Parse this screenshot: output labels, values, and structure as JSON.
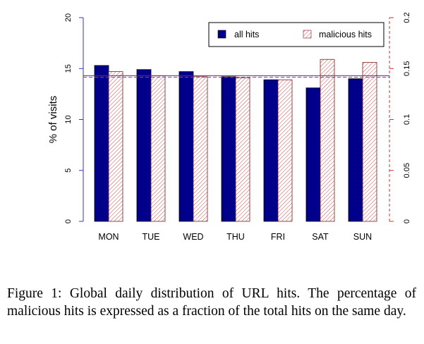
{
  "chart_data": {
    "type": "bar",
    "categories": [
      "MON",
      "TUE",
      "WED",
      "THU",
      "FRI",
      "SAT",
      "SUN"
    ],
    "series": [
      {
        "name": "all hits",
        "axis": "left",
        "color": "#00008B",
        "fill": "solid",
        "values": [
          15.3,
          14.9,
          14.7,
          14.2,
          13.9,
          13.1,
          14.0
        ]
      },
      {
        "name": "malicious hits",
        "axis": "right",
        "color": "#CC3333",
        "fill": "hatched",
        "values": [
          0.147,
          0.143,
          0.142,
          0.141,
          0.139,
          0.159,
          0.156
        ]
      }
    ],
    "ylabel": "% of visits",
    "y_left": {
      "lim": [
        0,
        20
      ],
      "ticks": [
        0,
        5,
        10,
        15,
        20
      ],
      "tick_labels": [
        "0",
        "5",
        "10",
        "15",
        "20"
      ]
    },
    "y_right": {
      "lim": [
        0,
        0.2
      ],
      "ticks": [
        0,
        0.05,
        0.1,
        0.15,
        0.2
      ],
      "tick_labels": [
        "0",
        "0.05",
        "0.1",
        "0.15",
        "0.2"
      ],
      "style": "dashed",
      "color": "#CC3333"
    },
    "reference_lines": [
      {
        "axis": "left",
        "value": 14.3,
        "color": "#3333CC",
        "style": "solid"
      },
      {
        "axis": "left",
        "value": 14.15,
        "color": "#CC3333",
        "style": "dashed"
      }
    ],
    "legend": {
      "position": "top-right",
      "entries": [
        "all hits",
        "malicious hits"
      ]
    },
    "grid": false
  },
  "caption": {
    "text": "Figure 1: Global daily distribution of URL hits. The percentage of malicious hits is expressed as a fraction of the total hits on the same day."
  }
}
